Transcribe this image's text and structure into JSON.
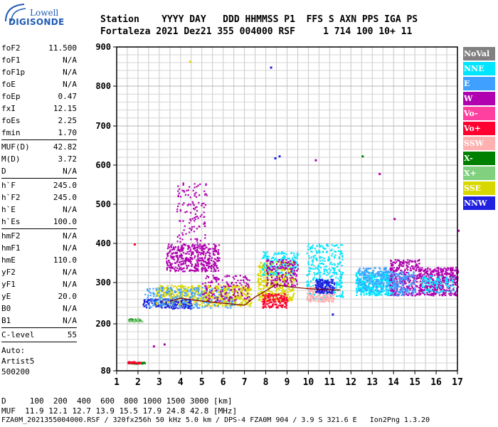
{
  "logo": {
    "line1": "Lowell",
    "line2": "DIGISONDE"
  },
  "header": {
    "line1": "Station    YYYY DAY   DDD HHMMSS P1  FFS S AXN PPS IGA PS",
    "line2": "Fortaleza 2021 Dez21 355 004000 RSF     1 714 100 10+ 11"
  },
  "params": [
    {
      "label": "foF2",
      "value": "11.500"
    },
    {
      "label": "foF1",
      "value": "N/A"
    },
    {
      "label": "foF1p",
      "value": "N/A"
    },
    {
      "label": "foE",
      "value": "N/A"
    },
    {
      "label": "foEp",
      "value": "0.47"
    },
    {
      "label": "fxI",
      "value": "12.15"
    },
    {
      "label": "foEs",
      "value": "2.25"
    },
    {
      "label": "fmin",
      "value": "1.70"
    },
    {
      "sep": true
    },
    {
      "label": "MUF(D)",
      "value": "42.82"
    },
    {
      "label": "M(D)",
      "value": "3.72"
    },
    {
      "label": "D",
      "value": "N/A"
    },
    {
      "sep": true
    },
    {
      "label": "h`F",
      "value": "245.0"
    },
    {
      "label": "h`F2",
      "value": "245.0"
    },
    {
      "label": "h`E",
      "value": "N/A"
    },
    {
      "label": "h`Es",
      "value": "100.0"
    },
    {
      "sep": true
    },
    {
      "label": "hmF2",
      "value": "N/A"
    },
    {
      "label": "hmF1",
      "value": "N/A"
    },
    {
      "label": "hmE",
      "value": "110.0"
    },
    {
      "label": "yF2",
      "value": "N/A"
    },
    {
      "label": "yF1",
      "value": "N/A"
    },
    {
      "label": "yE",
      "value": "20.0"
    },
    {
      "label": "B0",
      "value": "N/A"
    },
    {
      "label": "B1",
      "value": "N/A"
    },
    {
      "sep": true
    },
    {
      "label": "C-level",
      "value": "55"
    },
    {
      "sep": true
    }
  ],
  "autoscale": {
    "line1": "Auto:",
    "line2": "Artist5",
    "line3": "500200"
  },
  "footer": {
    "line1": "D     100  200  400  600  800 1000 1500 3000 [km]",
    "line2": "MUF  11.9 12.1 12.7 13.9 15.5 17.9 24.8 42.8 [MHz]",
    "line3": "FZA0M_2021355004000.RSF / 320fx256h 50 kHz 5.0 km / DPS-4 FZA0M 904 / 3.9 S 321.6 E   Ion2Png 1.3.20"
  },
  "legend": [
    {
      "label": "NoVal",
      "color": "#808080"
    },
    {
      "label": "NNE",
      "color": "#00e5ff"
    },
    {
      "label": "E",
      "color": "#40a0ff"
    },
    {
      "label": "W",
      "color": "#b000b0"
    },
    {
      "label": "Vo-",
      "color": "#ff40a0"
    },
    {
      "label": "Vo+",
      "color": "#ff0030"
    },
    {
      "label": "SSW",
      "color": "#ffb0b0"
    },
    {
      "label": "X-",
      "color": "#008000"
    },
    {
      "label": "X+",
      "color": "#80d080"
    },
    {
      "label": "SSE",
      "color": "#d8d800"
    },
    {
      "label": "NNW",
      "color": "#2020e0"
    }
  ],
  "chart_data": {
    "type": "scatter",
    "xlim": [
      1,
      17
    ],
    "ylim": [
      80,
      900
    ],
    "xticks": [
      "1",
      "2",
      "3",
      "4",
      "5",
      "6",
      "7",
      "8",
      "9",
      "10",
      "11",
      "12",
      "13",
      "14",
      "15",
      "16",
      "17"
    ],
    "yticks": [
      "80",
      "200",
      "300",
      "400",
      "500",
      "600",
      "700",
      "800",
      "900"
    ],
    "grid": true,
    "trace_profile": {
      "color": "#800000",
      "x": [
        3.5,
        4.0,
        5.0,
        6.0,
        7.0,
        7.5,
        8.0,
        8.5,
        9.0,
        10.0,
        11.0,
        11.5
      ],
      "y": [
        255,
        262,
        255,
        250,
        245,
        265,
        280,
        295,
        290,
        285,
        282,
        282
      ]
    },
    "echo_regions": [
      {
        "color": "#b000b0",
        "x": [
          3.3,
          5.8
        ],
        "y": [
          330,
          400
        ],
        "density": 420
      },
      {
        "color": "#b000b0",
        "x": [
          3.8,
          5.2
        ],
        "y": [
          400,
          560
        ],
        "density": 120
      },
      {
        "color": "#d8d800",
        "x": [
          2.8,
          7.3
        ],
        "y": [
          245,
          295
        ],
        "density": 650
      },
      {
        "color": "#2020e0",
        "x": [
          2.2,
          4.5
        ],
        "y": [
          238,
          262
        ],
        "density": 180
      },
      {
        "color": "#40a0ff",
        "x": [
          2.3,
          6.5
        ],
        "y": [
          240,
          290
        ],
        "density": 250
      },
      {
        "color": "#b000b0",
        "x": [
          5.0,
          7.2
        ],
        "y": [
          255,
          320
        ],
        "density": 150
      },
      {
        "color": "#d8d800",
        "x": [
          7.6,
          9.3
        ],
        "y": [
          255,
          355
        ],
        "density": 400
      },
      {
        "color": "#ff0030",
        "x": [
          7.8,
          9.0
        ],
        "y": [
          240,
          275
        ],
        "density": 150
      },
      {
        "color": "#00e5ff",
        "x": [
          7.8,
          9.5
        ],
        "y": [
          320,
          380
        ],
        "density": 170
      },
      {
        "color": "#b000b0",
        "x": [
          8.0,
          9.5
        ],
        "y": [
          290,
          360
        ],
        "density": 160
      },
      {
        "color": "#00e5ff",
        "x": [
          9.9,
          11.6
        ],
        "y": [
          260,
          400
        ],
        "density": 320
      },
      {
        "color": "#ffb0b0",
        "x": [
          9.9,
          11.2
        ],
        "y": [
          255,
          290
        ],
        "density": 180
      },
      {
        "color": "#2020e0",
        "x": [
          10.3,
          11.2
        ],
        "y": [
          275,
          310
        ],
        "density": 150
      },
      {
        "color": "#00e5ff",
        "x": [
          12.2,
          14.0
        ],
        "y": [
          270,
          330
        ],
        "density": 420
      },
      {
        "color": "#40a0ff",
        "x": [
          12.3,
          13.8
        ],
        "y": [
          280,
          340
        ],
        "density": 180
      },
      {
        "color": "#b000b0",
        "x": [
          13.8,
          15.2
        ],
        "y": [
          270,
          360
        ],
        "density": 320
      },
      {
        "color": "#40a0ff",
        "x": [
          13.9,
          15.0
        ],
        "y": [
          270,
          330
        ],
        "density": 150
      },
      {
        "color": "#b000b0",
        "x": [
          15.2,
          17.0
        ],
        "y": [
          270,
          340
        ],
        "density": 420
      },
      {
        "color": "#00e5ff",
        "x": [
          15.3,
          16.8
        ],
        "y": [
          275,
          320
        ],
        "density": 120
      },
      {
        "color": "#008000",
        "x": [
          1.5,
          2.3
        ],
        "y": [
          99,
          104
        ],
        "density": 50
      },
      {
        "color": "#ff0030",
        "x": [
          1.5,
          2.1
        ],
        "y": [
          100,
          105
        ],
        "density": 40
      },
      {
        "color": "#008000",
        "x": [
          1.5,
          2.1
        ],
        "y": [
          208,
          214
        ],
        "density": 30
      },
      {
        "color": "#80d080",
        "x": [
          1.5,
          2.2
        ],
        "y": [
          206,
          214
        ],
        "density": 25
      }
    ],
    "sparse_points": [
      {
        "color": "#2020e0",
        "x": 8.4,
        "y": 620
      },
      {
        "color": "#2020e0",
        "x": 8.6,
        "y": 625
      },
      {
        "color": "#2020e0",
        "x": 8.2,
        "y": 850
      },
      {
        "color": "#b000b0",
        "x": 10.3,
        "y": 615
      },
      {
        "color": "#008000",
        "x": 12.5,
        "y": 625
      },
      {
        "color": "#b000b0",
        "x": 13.3,
        "y": 580
      },
      {
        "color": "#ff0030",
        "x": 1.8,
        "y": 400
      },
      {
        "color": "#b000b0",
        "x": 2.7,
        "y": 145
      },
      {
        "color": "#b000b0",
        "x": 3.2,
        "y": 150
      },
      {
        "color": "#b000b0",
        "x": 14.0,
        "y": 465
      },
      {
        "color": "#b000b0",
        "x": 17.0,
        "y": 435
      },
      {
        "color": "#2020e0",
        "x": 11.1,
        "y": 225
      },
      {
        "color": "#d8d800",
        "x": 4.4,
        "y": 865
      }
    ]
  }
}
